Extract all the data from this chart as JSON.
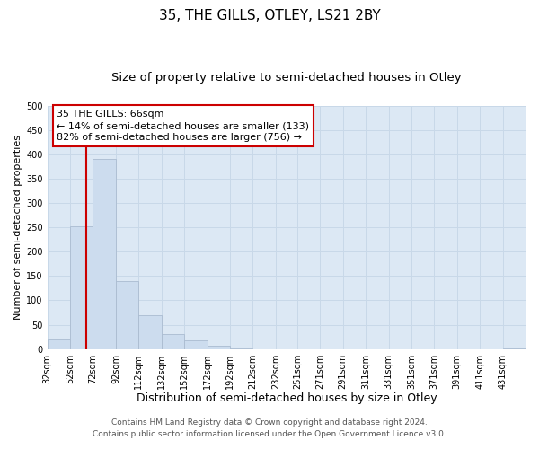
{
  "title": "35, THE GILLS, OTLEY, LS21 2BY",
  "subtitle": "Size of property relative to semi-detached houses in Otley",
  "xlabel": "Distribution of semi-detached houses by size in Otley",
  "ylabel": "Number of semi-detached properties",
  "footnote1": "Contains HM Land Registry data © Crown copyright and database right 2024.",
  "footnote2": "Contains public sector information licensed under the Open Government Licence v3.0.",
  "bins_left": [
    32,
    52,
    72,
    92,
    112,
    132,
    152,
    172,
    192,
    212,
    232,
    251,
    271,
    291,
    311,
    331,
    351,
    371,
    391,
    411,
    431
  ],
  "bar_heights": [
    20,
    253,
    390,
    140,
    70,
    30,
    17,
    7,
    1,
    0,
    0,
    0,
    0,
    0,
    0,
    0,
    0,
    0,
    0,
    0,
    1
  ],
  "bin_width": 20,
  "bar_color": "#ccdcee",
  "bar_edge_color": "#aabbd0",
  "property_size": 66,
  "red_line_color": "#cc0000",
  "annotation_line1": "35 THE GILLS: 66sqm",
  "annotation_line2": "← 14% of semi-detached houses are smaller (133)",
  "annotation_line3": "82% of semi-detached houses are larger (756) →",
  "annotation_box_color": "#ffffff",
  "annotation_box_edge": "#cc0000",
  "ylim": [
    0,
    500
  ],
  "yticks": [
    0,
    50,
    100,
    150,
    200,
    250,
    300,
    350,
    400,
    450,
    500
  ],
  "xtick_labels": [
    "32sqm",
    "52sqm",
    "72sqm",
    "92sqm",
    "112sqm",
    "132sqm",
    "152sqm",
    "172sqm",
    "192sqm",
    "212sqm",
    "232sqm",
    "251sqm",
    "271sqm",
    "291sqm",
    "311sqm",
    "331sqm",
    "351sqm",
    "371sqm",
    "391sqm",
    "411sqm",
    "431sqm"
  ],
  "grid_color": "#c8d8e8",
  "plot_bg_color": "#dce8f4",
  "fig_bg_color": "#ffffff",
  "title_fontsize": 11,
  "subtitle_fontsize": 9.5,
  "xlabel_fontsize": 9,
  "ylabel_fontsize": 8,
  "tick_fontsize": 7,
  "annotation_fontsize": 8,
  "footnote_fontsize": 6.5
}
